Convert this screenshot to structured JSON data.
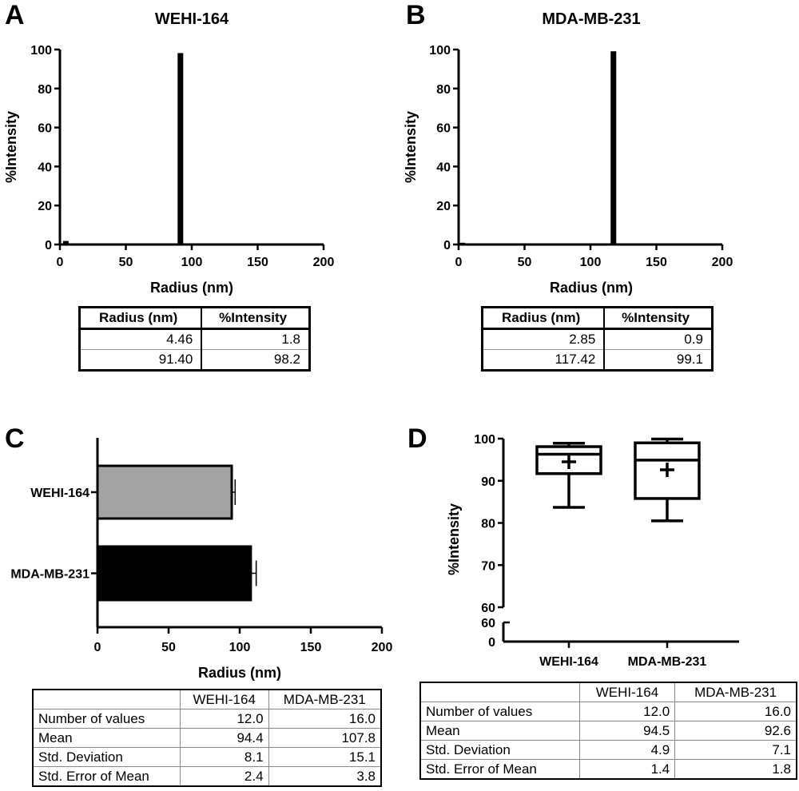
{
  "panels": {
    "A": "A",
    "B": "B",
    "C": "C",
    "D": "D"
  },
  "chart_data": [
    {
      "type": "bar",
      "panel": "A",
      "title": "WEHI-164",
      "xlabel": "Radius (nm)",
      "ylabel": "%Intensity",
      "xlim": [
        0,
        200
      ],
      "ylim": [
        0,
        100
      ],
      "xticks": [
        "0",
        "50",
        "100",
        "150",
        "200"
      ],
      "yticks": [
        "0",
        "20",
        "40",
        "60",
        "80",
        "100"
      ],
      "x": [
        4.46,
        91.4
      ],
      "values": [
        1.8,
        98.2
      ],
      "color": "#000000",
      "table": {
        "headers": [
          "Radius (nm)",
          "%Intensity"
        ],
        "rows": [
          [
            "4.46",
            "1.8"
          ],
          [
            "91.40",
            "98.2"
          ]
        ]
      }
    },
    {
      "type": "bar",
      "panel": "B",
      "title": "MDA-MB-231",
      "xlabel": "Radius (nm)",
      "ylabel": "%Intensity",
      "xlim": [
        0,
        200
      ],
      "ylim": [
        0,
        100
      ],
      "xticks": [
        "0",
        "50",
        "100",
        "150",
        "200"
      ],
      "yticks": [
        "0",
        "20",
        "40",
        "60",
        "80",
        "100"
      ],
      "x": [
        2.85,
        117.42
      ],
      "values": [
        0.9,
        99.1
      ],
      "color": "#000000",
      "table": {
        "headers": [
          "Radius (nm)",
          "%Intensity"
        ],
        "rows": [
          [
            "2.85",
            "0.9"
          ],
          [
            "117.42",
            "99.1"
          ]
        ]
      }
    },
    {
      "type": "bar",
      "orientation": "horizontal",
      "panel": "C",
      "xlabel": "Radius (nm)",
      "xlim": [
        0,
        200
      ],
      "xticks": [
        "0",
        "50",
        "100",
        "150",
        "200"
      ],
      "categories": [
        "WEHI-164",
        "MDA-MB-231"
      ],
      "values": [
        94.4,
        107.8
      ],
      "errors": [
        2.4,
        3.8
      ],
      "colors": [
        "#a3a3a6",
        "#000000"
      ],
      "table": {
        "headers": [
          "",
          "WEHI-164",
          "MDA-MB-231"
        ],
        "rows": [
          [
            "Number of values",
            "12.0",
            "16.0"
          ],
          [
            "Mean",
            "94.4",
            "107.8"
          ],
          [
            "Std. Deviation",
            "8.1",
            "15.1"
          ],
          [
            "Std. Error of Mean",
            "2.4",
            "3.8"
          ]
        ]
      }
    },
    {
      "type": "box",
      "panel": "D",
      "ylabel": "%Intensity",
      "ylim": [
        0,
        100
      ],
      "axis_break": [
        60,
        60
      ],
      "yticks_upper": [
        "60",
        "70",
        "80",
        "90",
        "100"
      ],
      "yticks_lower": [
        "0",
        "60"
      ],
      "categories": [
        "WEHI-164",
        "MDA-MB-231"
      ],
      "boxes": [
        {
          "min": 83.7,
          "q1": 91.7,
          "median": 96.3,
          "q3": 98.1,
          "max": 98.9,
          "mean": 94.5
        },
        {
          "min": 80.5,
          "q1": 85.8,
          "median": 94.9,
          "q3": 99.0,
          "max": 99.9,
          "mean": 92.6
        }
      ],
      "table": {
        "headers": [
          "",
          "WEHI-164",
          "MDA-MB-231"
        ],
        "rows": [
          [
            "Number of values",
            "12.0",
            "16.0"
          ],
          [
            "Mean",
            "94.5",
            "92.6"
          ],
          [
            "Std. Deviation",
            "4.9",
            "7.1"
          ],
          [
            "Std. Error of Mean",
            "1.4",
            "1.8"
          ]
        ]
      }
    }
  ]
}
